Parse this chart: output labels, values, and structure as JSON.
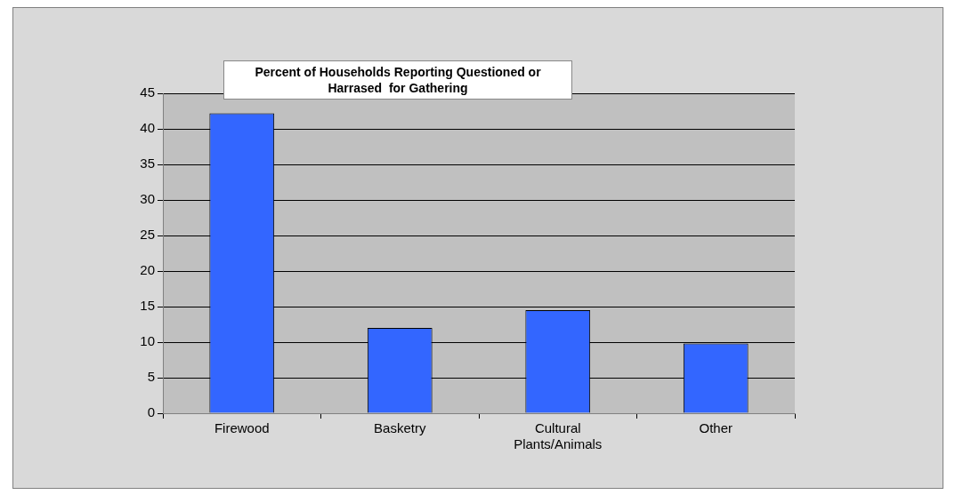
{
  "chart_data": {
    "type": "bar",
    "title": "Percent of Households Reporting Questioned or Harrased  for Gathering",
    "categories": [
      "Firewood",
      "Basketry",
      "Cultural Plants/Animals",
      "Other"
    ],
    "values": [
      42.2,
      12.0,
      14.5,
      9.8
    ],
    "color": "#3366ff",
    "ylim": [
      0,
      45
    ],
    "yticks": [
      0,
      5,
      10,
      15,
      20,
      25,
      30,
      35,
      40,
      45
    ],
    "grid": "y"
  }
}
